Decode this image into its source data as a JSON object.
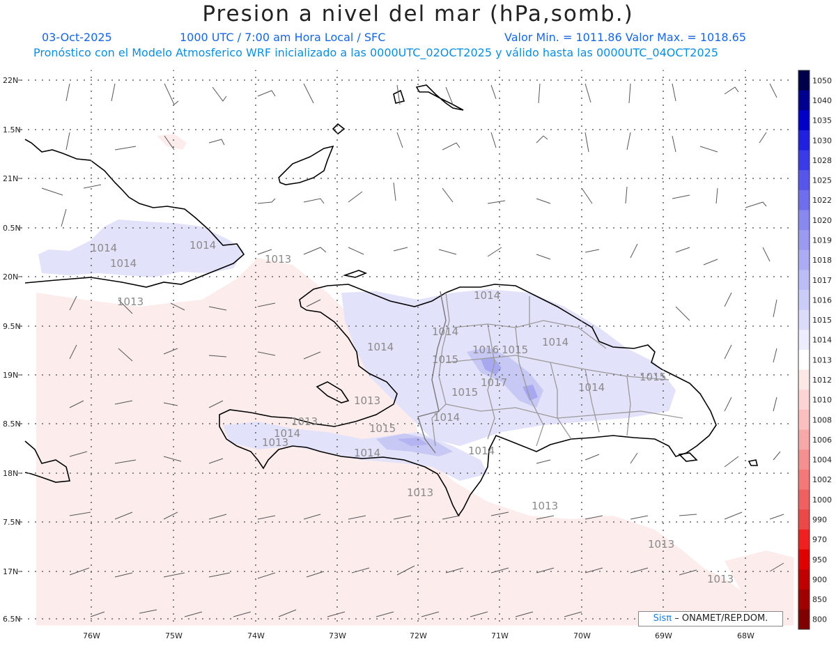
{
  "header": {
    "title": "Presion a nivel del mar (hPa,somb.)",
    "date": "03-Oct-2025",
    "time_label": "1000 UTC / 7:00 am Hora Local / SFC",
    "min_max": "Valor Min. = 1011.86  Valor Max. = 1018.65",
    "model_line": "Pronóstico con el Modelo Atmosferico WRF inicializado a las 0000UTC_02OCT2025 y válido hasta las  0000UTC_04OCT2025"
  },
  "axes": {
    "lat_labels": [
      "22N",
      "1.5N",
      "21N",
      "0.5N",
      "20N",
      "9.5N",
      "19N",
      "8.5N",
      "18N",
      "7.5N",
      "17N",
      "6.5N"
    ],
    "lon_labels": [
      "76W",
      "75W",
      "74W",
      "73W",
      "72W",
      "71W",
      "70W",
      "69W",
      "68W"
    ]
  },
  "colorbar": {
    "levels": [
      "1050",
      "1040",
      "1035",
      "1030",
      "1028",
      "1025",
      "1022",
      "1020",
      "1019",
      "1018",
      "1017",
      "1016",
      "1015",
      "1014",
      "1013",
      "1012",
      "1010",
      "1008",
      "1006",
      "1004",
      "1002",
      "1000",
      "990",
      "970",
      "950",
      "900",
      "850",
      "800"
    ],
    "colors": [
      "#00004a",
      "#000090",
      "#0000c8",
      "#2020e0",
      "#3a3ae8",
      "#5656ea",
      "#6e6eee",
      "#8888f0",
      "#9a9af2",
      "#acacf4",
      "#bcbcf6",
      "#ccccf8",
      "#dcdcfa",
      "#ececfc",
      "#ffffff",
      "#fde8e8",
      "#fcd4d4",
      "#fac0c0",
      "#f8a8a8",
      "#f69090",
      "#f47878",
      "#f06060",
      "#ec4848",
      "#f02020",
      "#e00000",
      "#c00000",
      "#a00000",
      "#800000"
    ]
  },
  "contour_labels": [
    "1014",
    "1014",
    "1014",
    "1013",
    "1013",
    "1014",
    "1014",
    "1015",
    "1016",
    "1015",
    "1014",
    "1015",
    "1017",
    "1013",
    "1015",
    "1014",
    "1014",
    "1013",
    "1013",
    "1014",
    "1015",
    "1014",
    "1014",
    "1014",
    "1013",
    "1013",
    "1013",
    "1013"
  ],
  "credit": {
    "sis": "Sisπ",
    "rest": "– ONAMET/REP.DOM."
  }
}
